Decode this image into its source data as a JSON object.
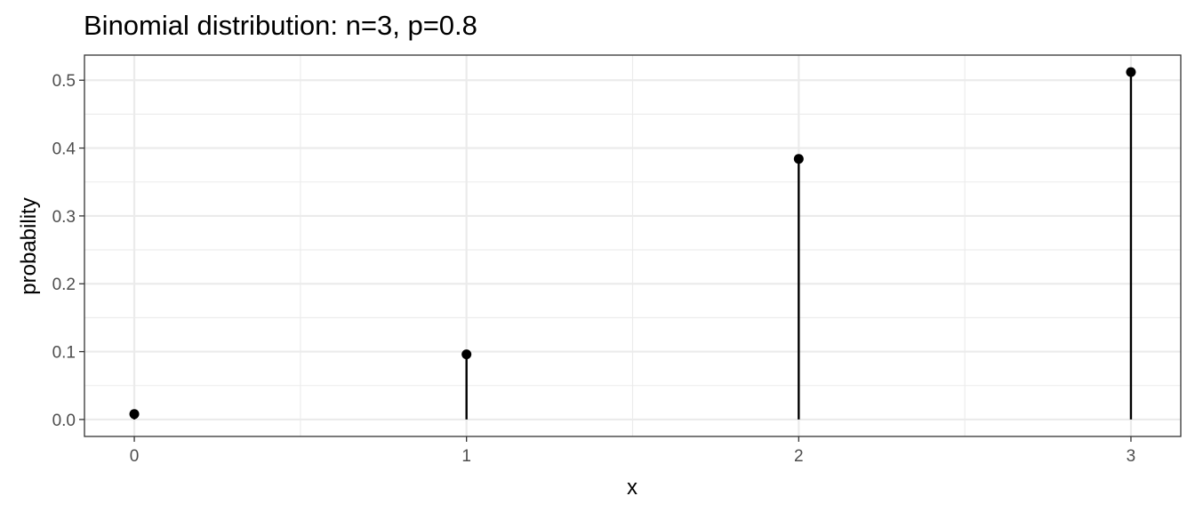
{
  "chart_data": {
    "type": "scatter",
    "title": "Binomial distribution: n=3, p=0.8",
    "xlabel": "x",
    "ylabel": "probability",
    "x": [
      0,
      1,
      2,
      3
    ],
    "values": [
      0.008,
      0.096,
      0.384,
      0.512
    ],
    "xlim": [
      -0.15,
      3.15
    ],
    "ylim": [
      -0.025,
      0.537
    ],
    "x_ticks": [
      0,
      1,
      2,
      3
    ],
    "x_tick_labels": [
      "0",
      "1",
      "2",
      "3"
    ],
    "y_ticks": [
      0.0,
      0.1,
      0.2,
      0.3,
      0.4,
      0.5
    ],
    "y_tick_labels": [
      "0.0",
      "0.1",
      "0.2",
      "0.3",
      "0.4",
      "0.5"
    ],
    "grid": true,
    "stems": true,
    "point_color": "#000000",
    "stem_color": "#000000",
    "grid_color": "#ebebeb",
    "border_color": "#333333"
  }
}
